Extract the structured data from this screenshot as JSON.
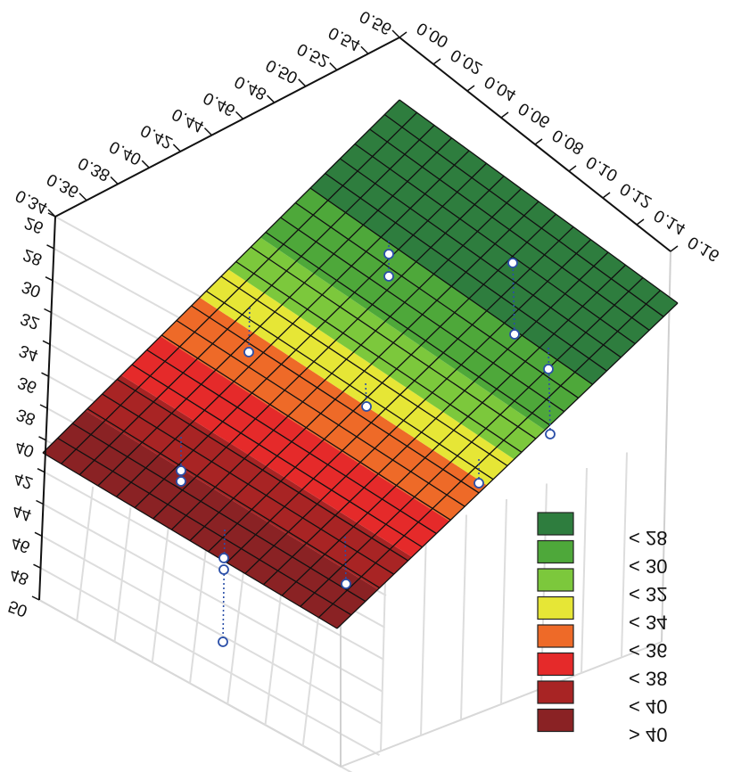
{
  "chart_data": {
    "type": "surface3d",
    "x_axis": {
      "range": [
        0.34,
        0.56
      ],
      "ticks": [
        "0.34",
        "0.36",
        "0.38",
        "0.40",
        "0.42",
        "0.44",
        "0.46",
        "0.48",
        "0.50",
        "0.52",
        "0.54",
        "0.56"
      ]
    },
    "y_axis": {
      "range": [
        0.0,
        0.16
      ],
      "ticks": [
        "0.00",
        "0.02",
        "0.04",
        "0.06",
        "0.08",
        "0.10",
        "0.12",
        "0.14",
        "0.16"
      ]
    },
    "z_axis": {
      "range": [
        26,
        50
      ],
      "ticks": [
        "26",
        "28",
        "30",
        "32",
        "34",
        "36",
        "38",
        "40",
        "42",
        "44",
        "46",
        "48",
        "50"
      ]
    },
    "surface_levels": [
      {
        "label": "< 28",
        "color": "#2e7d3e"
      },
      {
        "label": "< 30",
        "color": "#4ea83a"
      },
      {
        "label": "< 32",
        "color": "#7cc83c"
      },
      {
        "label": "< 34",
        "color": "#e6e636"
      },
      {
        "label": "< 36",
        "color": "#ee6a28"
      },
      {
        "label": "< 38",
        "color": "#e52a2a"
      },
      {
        "label": "< 40",
        "color": "#a82424"
      },
      {
        "label": "> 40",
        "color": "#8a2224"
      }
    ],
    "legend_position": "bottom-right",
    "grid": true
  }
}
